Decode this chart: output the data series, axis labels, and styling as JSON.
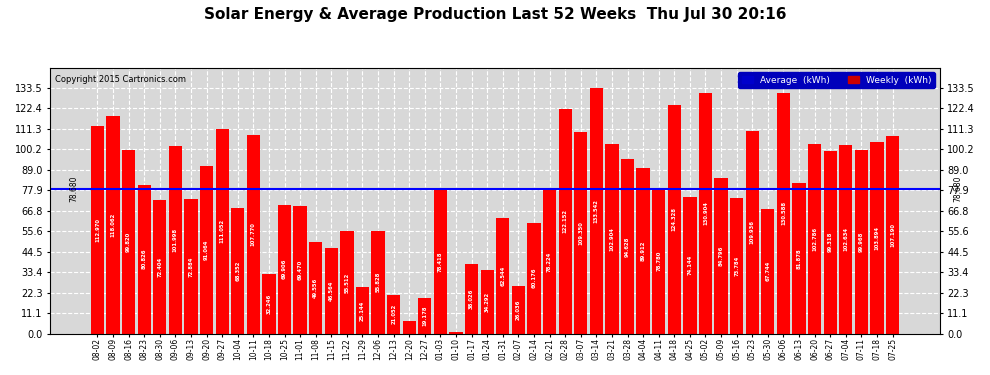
{
  "title": "Solar Energy & Average Production Last 52 Weeks  Thu Jul 30 20:16",
  "copyright": "Copyright 2015 Cartronics.com",
  "average_line": 78.68,
  "bar_color": "#ff0000",
  "avg_line_color": "#0000ff",
  "background_color": "#ffffff",
  "plot_bg_color": "#d8d8d8",
  "grid_color": "#ffffff",
  "ylim": [
    0,
    144.6
  ],
  "yticks": [
    0.0,
    11.1,
    22.3,
    33.4,
    44.5,
    55.6,
    66.8,
    77.9,
    89.0,
    100.2,
    111.3,
    122.4,
    133.5
  ],
  "categories": [
    "08-02",
    "08-09",
    "08-16",
    "08-23",
    "08-30",
    "09-06",
    "09-13",
    "09-20",
    "09-27",
    "10-04",
    "10-11",
    "10-18",
    "10-25",
    "11-01",
    "11-08",
    "11-15",
    "11-22",
    "11-29",
    "12-06",
    "12-13",
    "12-20",
    "12-27",
    "01-03",
    "01-10",
    "01-17",
    "01-24",
    "01-31",
    "02-07",
    "02-14",
    "02-21",
    "02-28",
    "03-07",
    "03-14",
    "03-21",
    "03-28",
    "04-04",
    "04-11",
    "04-18",
    "04-25",
    "05-02",
    "05-09",
    "05-16",
    "05-23",
    "05-30",
    "06-06",
    "06-13",
    "06-20",
    "06-27",
    "07-04",
    "07-11",
    "07-18",
    "07-25"
  ],
  "values": [
    112.97,
    118.062,
    99.82,
    80.826,
    72.404,
    101.998,
    72.884,
    91.064,
    111.052,
    68.352,
    107.77,
    32.246,
    69.906,
    69.47,
    49.556,
    46.564,
    55.512,
    25.144,
    55.828,
    21.052,
    6.808,
    19.178,
    78.418,
    1.03,
    38.026,
    34.292,
    62.544,
    26.036,
    60.176,
    78.224,
    122.152,
    109.35,
    133.542,
    102.904,
    94.628,
    89.912,
    78.78,
    124.328,
    74.144,
    130.904,
    84.796,
    73.784,
    109.936,
    67.744,
    130.588,
    81.878,
    102.786,
    99.318,
    102.634,
    99.968,
    103.894,
    107.19
  ],
  "legend_avg_color": "#0000cc",
  "legend_weekly_color": "#cc0000",
  "legend_avg_label": "Average  (kWh)",
  "legend_weekly_label": "Weekly  (kWh)"
}
